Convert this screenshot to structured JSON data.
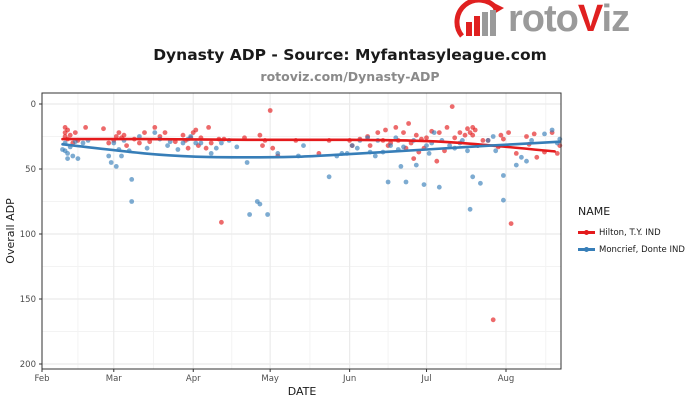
{
  "brand": {
    "logo_part1": "roto",
    "logo_part2": "V",
    "logo_part3": "iz",
    "primary_color": "#e02020",
    "secondary_color": "#9a9a9a"
  },
  "chart_data": {
    "type": "scatter",
    "title": "Dynasty ADP - Source: Myfantasyleague.com",
    "subtitle": "rotoviz.com/Dynasty-ADP",
    "xlabel": "DATE",
    "ylabel": "Overall ADP",
    "x_unit": "days since Feb 1",
    "xlim": [
      0,
      202
    ],
    "ylim": [
      0,
      200
    ],
    "y_reversed": true,
    "x_ticks": [
      {
        "label": "Feb",
        "value": 0
      },
      {
        "label": "Mar",
        "value": 28
      },
      {
        "label": "Apr",
        "value": 59
      },
      {
        "label": "May",
        "value": 89
      },
      {
        "label": "Jun",
        "value": 120
      },
      {
        "label": "Jul",
        "value": 150
      },
      {
        "label": "Aug",
        "value": 181
      }
    ],
    "y_ticks": [
      0,
      50,
      100,
      150,
      200
    ],
    "grid": true,
    "legend_title": "NAME",
    "legend_position": "right",
    "series": [
      {
        "name": "Hilton, T.Y. IND",
        "color": "#e41a1c",
        "points": [
          [
            9,
            18
          ],
          [
            9,
            22
          ],
          [
            9,
            25
          ],
          [
            10,
            20
          ],
          [
            10,
            27
          ],
          [
            11,
            24
          ],
          [
            12,
            30
          ],
          [
            13,
            22
          ],
          [
            14,
            28
          ],
          [
            17,
            18
          ],
          [
            24,
            19
          ],
          [
            26,
            30
          ],
          [
            28,
            28
          ],
          [
            29,
            25
          ],
          [
            30,
            22
          ],
          [
            31,
            26
          ],
          [
            32,
            24
          ],
          [
            33,
            32
          ],
          [
            36,
            27
          ],
          [
            38,
            30
          ],
          [
            40,
            22
          ],
          [
            42,
            29
          ],
          [
            44,
            18
          ],
          [
            46,
            25
          ],
          [
            48,
            22
          ],
          [
            52,
            29
          ],
          [
            55,
            24
          ],
          [
            56,
            28
          ],
          [
            57,
            34
          ],
          [
            58,
            26
          ],
          [
            59,
            22
          ],
          [
            60,
            20
          ],
          [
            61,
            32
          ],
          [
            62,
            26
          ],
          [
            64,
            34
          ],
          [
            65,
            18
          ],
          [
            66,
            30
          ],
          [
            69,
            27
          ],
          [
            70,
            91
          ],
          [
            71,
            27
          ],
          [
            79,
            26
          ],
          [
            85,
            24
          ],
          [
            86,
            32
          ],
          [
            87,
            28
          ],
          [
            89,
            5
          ],
          [
            90,
            34
          ],
          [
            92,
            40
          ],
          [
            99,
            28
          ],
          [
            108,
            38
          ],
          [
            112,
            28
          ],
          [
            120,
            28
          ],
          [
            121,
            32
          ],
          [
            124,
            27
          ],
          [
            127,
            25
          ],
          [
            128,
            32
          ],
          [
            131,
            22
          ],
          [
            133,
            28
          ],
          [
            134,
            20
          ],
          [
            135,
            32
          ],
          [
            136,
            30
          ],
          [
            138,
            18
          ],
          [
            139,
            28
          ],
          [
            141,
            22
          ],
          [
            142,
            34
          ],
          [
            143,
            15
          ],
          [
            144,
            30
          ],
          [
            145,
            42
          ],
          [
            146,
            24
          ],
          [
            147,
            37
          ],
          [
            148,
            27
          ],
          [
            149,
            34
          ],
          [
            150,
            26
          ],
          [
            152,
            21
          ],
          [
            154,
            44
          ],
          [
            155,
            22
          ],
          [
            157,
            36
          ],
          [
            158,
            18
          ],
          [
            160,
            2
          ],
          [
            161,
            26
          ],
          [
            163,
            22
          ],
          [
            165,
            24
          ],
          [
            166,
            19
          ],
          [
            167,
            22
          ],
          [
            168,
            18
          ],
          [
            168,
            24
          ],
          [
            169,
            20
          ],
          [
            170,
            32
          ],
          [
            172,
            28
          ],
          [
            174,
            28
          ],
          [
            176,
            166
          ],
          [
            178,
            33
          ],
          [
            179,
            24
          ],
          [
            180,
            27
          ],
          [
            182,
            22
          ],
          [
            183,
            92
          ],
          [
            185,
            38
          ],
          [
            189,
            25
          ],
          [
            190,
            31
          ],
          [
            192,
            23
          ],
          [
            193,
            41
          ],
          [
            196,
            37
          ],
          [
            199,
            22
          ],
          [
            201,
            38
          ],
          [
            202,
            32
          ]
        ],
        "trend": [
          [
            8,
            27
          ],
          [
            40,
            27
          ],
          [
            80,
            27.5
          ],
          [
            120,
            27.5
          ],
          [
            150,
            28.5
          ],
          [
            170,
            31
          ],
          [
            200,
            36.5
          ]
        ]
      },
      {
        "name": "Moncrief, Donte IND",
        "color": "#377eb8",
        "points": [
          [
            8,
            35
          ],
          [
            9,
            36
          ],
          [
            9,
            30
          ],
          [
            10,
            38
          ],
          [
            10,
            42
          ],
          [
            11,
            33
          ],
          [
            12,
            40
          ],
          [
            13,
            29
          ],
          [
            14,
            42
          ],
          [
            16,
            30
          ],
          [
            18,
            28
          ],
          [
            26,
            40
          ],
          [
            27,
            45
          ],
          [
            28,
            30
          ],
          [
            29,
            48
          ],
          [
            30,
            35
          ],
          [
            31,
            40
          ],
          [
            32,
            28
          ],
          [
            34,
            36
          ],
          [
            35,
            58
          ],
          [
            35,
            75
          ],
          [
            38,
            25
          ],
          [
            41,
            34
          ],
          [
            44,
            22
          ],
          [
            46,
            27
          ],
          [
            49,
            32
          ],
          [
            50,
            29
          ],
          [
            53,
            35
          ],
          [
            55,
            30
          ],
          [
            57,
            27
          ],
          [
            58,
            25
          ],
          [
            60,
            30
          ],
          [
            62,
            30
          ],
          [
            66,
            38
          ],
          [
            68,
            34
          ],
          [
            70,
            30
          ],
          [
            73,
            28
          ],
          [
            76,
            33
          ],
          [
            80,
            45
          ],
          [
            81,
            85
          ],
          [
            84,
            75
          ],
          [
            85,
            77
          ],
          [
            88,
            85
          ],
          [
            92,
            38
          ],
          [
            100,
            40
          ],
          [
            102,
            32
          ],
          [
            112,
            56
          ],
          [
            115,
            40
          ],
          [
            117,
            38
          ],
          [
            119,
            38
          ],
          [
            121,
            32
          ],
          [
            123,
            34
          ],
          [
            124,
            28
          ],
          [
            127,
            26
          ],
          [
            128,
            37
          ],
          [
            130,
            40
          ],
          [
            131,
            28
          ],
          [
            133,
            37
          ],
          [
            135,
            60
          ],
          [
            136,
            32
          ],
          [
            138,
            26
          ],
          [
            139,
            35
          ],
          [
            140,
            48
          ],
          [
            141,
            33
          ],
          [
            142,
            60
          ],
          [
            145,
            28
          ],
          [
            146,
            47
          ],
          [
            149,
            62
          ],
          [
            150,
            32
          ],
          [
            151,
            38
          ],
          [
            152,
            30
          ],
          [
            153,
            22
          ],
          [
            155,
            64
          ],
          [
            156,
            28
          ],
          [
            159,
            32
          ],
          [
            161,
            34
          ],
          [
            163,
            30
          ],
          [
            164,
            28
          ],
          [
            166,
            36
          ],
          [
            167,
            81
          ],
          [
            168,
            56
          ],
          [
            170,
            32
          ],
          [
            171,
            61
          ],
          [
            174,
            28
          ],
          [
            176,
            25
          ],
          [
            177,
            36
          ],
          [
            180,
            55
          ],
          [
            180,
            74
          ],
          [
            185,
            47
          ],
          [
            187,
            41
          ],
          [
            189,
            44
          ],
          [
            191,
            28
          ],
          [
            196,
            23
          ],
          [
            199,
            20
          ],
          [
            201,
            30
          ],
          [
            202,
            27
          ]
        ],
        "trend": [
          [
            8,
            31
          ],
          [
            40,
            38
          ],
          [
            60,
            40.5
          ],
          [
            80,
            41
          ],
          [
            100,
            40.5
          ],
          [
            120,
            38.5
          ],
          [
            150,
            35
          ],
          [
            175,
            32
          ],
          [
            202,
            29
          ]
        ]
      }
    ]
  }
}
